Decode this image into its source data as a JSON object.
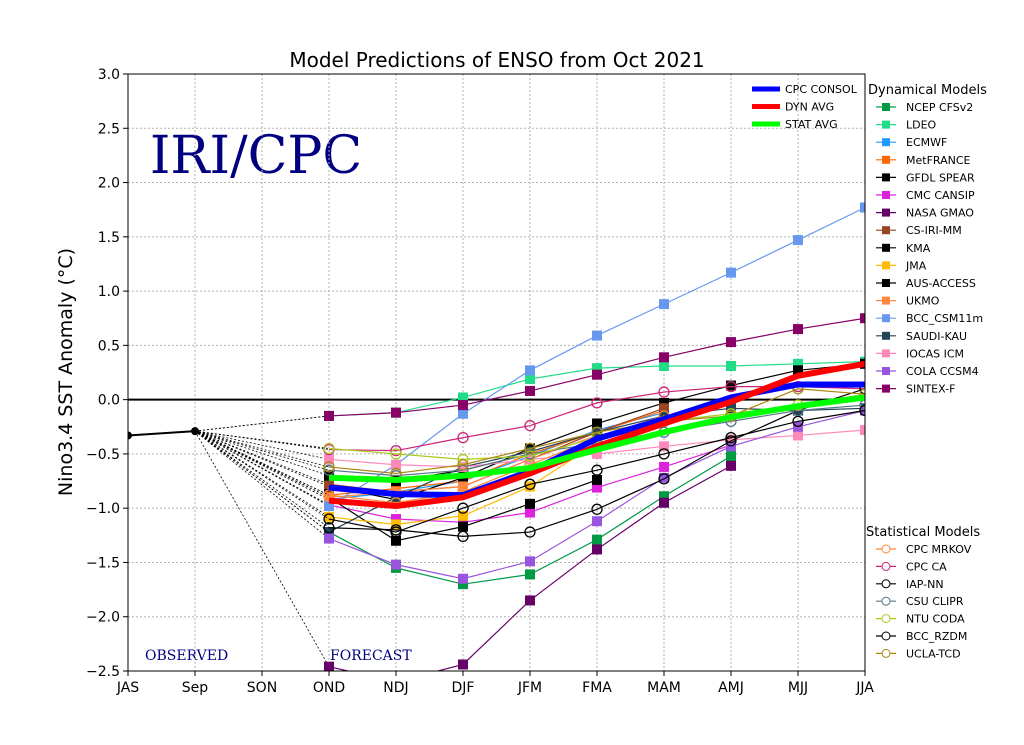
{
  "chart_data": {
    "type": "line",
    "title": "Model Predictions of ENSO from Oct 2021",
    "ylabel": "Nino3.4 SST Anomaly (°C)",
    "xlabel": "",
    "ylim": [
      -2.5,
      3.0
    ],
    "grid": true,
    "categories": [
      "JAS",
      "Sep",
      "SON",
      "OND",
      "NDJ",
      "DJF",
      "JFM",
      "FMA",
      "MAM",
      "AMJ",
      "MJJ",
      "JJA"
    ],
    "yticks": [
      "3.0",
      "2.5",
      "2.0",
      "1.5",
      "1.0",
      "0.5",
      "0.0",
      "−0.5",
      "−1.0",
      "−1.5",
      "−2.0",
      "−2.5"
    ],
    "watermark": "IRI/CPC",
    "annotations": {
      "observed": "OBSERVED",
      "forecast": "FORECAST"
    },
    "observed": {
      "categories": [
        "JAS",
        "Sep"
      ],
      "values": [
        -0.33,
        -0.29
      ]
    },
    "forecast_categories": [
      "OND",
      "NDJ",
      "DJF",
      "JFM",
      "FMA",
      "MAM",
      "AMJ",
      "MJJ",
      "JJA"
    ],
    "summary_series": [
      {
        "name": "CPC CONSOL",
        "color": "#0000ff",
        "values": [
          -0.81,
          -0.87,
          -0.88,
          -0.66,
          -0.36,
          -0.18,
          0.02,
          0.14,
          0.14
        ]
      },
      {
        "name": "DYN AVG",
        "color": "#ff0000",
        "values": [
          -0.93,
          -0.98,
          -0.9,
          -0.68,
          -0.43,
          -0.22,
          -0.02,
          0.22,
          0.33
        ]
      },
      {
        "name": "STAT AVG",
        "color": "#00ff00",
        "values": [
          -0.72,
          -0.74,
          -0.7,
          -0.63,
          -0.46,
          -0.3,
          -0.16,
          -0.06,
          0.02
        ]
      }
    ],
    "dynamical_title": "Dynamical Models",
    "dynamical_models": [
      {
        "name": "NCEP CFSv2",
        "color": "#009944",
        "values": [
          -1.22,
          -1.55,
          -1.7,
          -1.61,
          -1.29,
          -0.89,
          -0.52,
          null,
          null
        ]
      },
      {
        "name": "LDEO",
        "color": "#22dd88",
        "values": [
          -0.15,
          -0.12,
          0.02,
          0.19,
          0.29,
          0.31,
          0.31,
          0.33,
          0.35
        ]
      },
      {
        "name": "ECMWF",
        "color": "#2299ff",
        "values": [
          -0.92,
          -0.85,
          -0.75,
          -0.52,
          -0.28,
          -0.12,
          null,
          null,
          null
        ]
      },
      {
        "name": "MetFRANCE",
        "color": "#ff6600",
        "values": [
          -0.88,
          -0.82,
          -0.75,
          -0.5,
          -0.3,
          -0.1,
          null,
          null,
          null
        ]
      },
      {
        "name": "GFDL SPEAR",
        "color": "#000000",
        "values": [
          -0.8,
          -0.92,
          -0.72,
          -0.45,
          -0.22,
          -0.03,
          0.13,
          0.27,
          0.33
        ]
      },
      {
        "name": "CMC CANSIP",
        "color": "#dd22dd",
        "values": [
          -0.97,
          -1.1,
          -1.13,
          -1.04,
          -0.81,
          -0.62,
          -0.42,
          null,
          null
        ]
      },
      {
        "name": "NASA GMAO",
        "color": "#660066",
        "values": [
          -2.46,
          -2.6,
          -2.44,
          -1.85,
          -1.38,
          -0.95,
          -0.61,
          null,
          null
        ]
      },
      {
        "name": "CS-IRI-MM",
        "color": "#994422",
        "values": [
          -0.78,
          -0.85,
          -0.8,
          -0.55,
          -0.3,
          -0.08,
          null,
          null,
          null
        ]
      },
      {
        "name": "KMA",
        "color": "#000000",
        "values": [
          -0.9,
          -1.3,
          -1.17,
          -0.96,
          -0.74,
          null,
          null,
          null,
          null
        ]
      },
      {
        "name": "JMA",
        "color": "#ffbb00",
        "values": [
          -1.08,
          -1.15,
          -1.07,
          -0.8,
          -0.4,
          null,
          null,
          null,
          null
        ]
      },
      {
        "name": "AUS-ACCESS",
        "color": "#000000",
        "values": [
          -0.7,
          -0.75,
          -0.65,
          -0.5,
          null,
          null,
          null,
          null,
          null
        ]
      },
      {
        "name": "UKMO",
        "color": "#ff8844",
        "values": [
          -0.9,
          -0.85,
          -0.8,
          -0.55,
          -0.33,
          null,
          null,
          null,
          null
        ]
      },
      {
        "name": "BCC_CSM11m",
        "color": "#6699ee",
        "values": [
          -0.98,
          -0.6,
          -0.13,
          0.27,
          0.59,
          0.88,
          1.17,
          1.47,
          1.77
        ]
      },
      {
        "name": "SAUDI-KAU",
        "color": "#224455",
        "values": [
          -1.22,
          -0.9,
          -0.62,
          -0.48,
          -0.3,
          -0.15,
          -0.08,
          -0.1,
          -0.08
        ]
      },
      {
        "name": "IOCAS ICM",
        "color": "#ff88bb",
        "values": [
          -0.55,
          -0.6,
          -0.62,
          -0.55,
          -0.5,
          -0.43,
          -0.37,
          -0.33,
          -0.28
        ]
      },
      {
        "name": "COLA CCSM4",
        "color": "#9955dd",
        "values": [
          -1.28,
          -1.52,
          -1.65,
          -1.49,
          -1.12,
          -0.72,
          -0.43,
          -0.25,
          -0.1
        ]
      },
      {
        "name": "SINTEX-F",
        "color": "#880066",
        "values": [
          -0.15,
          -0.12,
          -0.05,
          0.08,
          0.23,
          0.39,
          0.53,
          0.65,
          0.75
        ]
      }
    ],
    "statistical_title": "Statistical Models",
    "statistical_models": [
      {
        "name": "CPC MRKOV",
        "color": "#ff8833",
        "values": [
          -0.88,
          -0.95,
          -0.85,
          -0.6,
          -0.35,
          -0.15,
          null,
          null,
          null
        ]
      },
      {
        "name": "CPC CA",
        "color": "#cc2277",
        "values": [
          -0.46,
          -0.47,
          -0.35,
          -0.24,
          -0.03,
          0.07,
          0.12,
          0.12,
          0.1
        ]
      },
      {
        "name": "IAP-NN",
        "color": "#000000",
        "values": [
          -1.18,
          -1.2,
          -1.26,
          -1.22,
          -1.01,
          -0.73,
          -0.38,
          -0.1,
          0.1
        ]
      },
      {
        "name": "CSU CLIPR",
        "color": "#557788",
        "values": [
          -0.65,
          -0.7,
          -0.65,
          -0.5,
          -0.4,
          -0.3,
          -0.2,
          -0.1,
          -0.05
        ]
      },
      {
        "name": "NTU CODA",
        "color": "#aacc22",
        "values": [
          -0.45,
          -0.5,
          -0.55,
          -0.52,
          -0.35,
          -0.2,
          -0.13,
          -0.05,
          0.05
        ]
      },
      {
        "name": "BCC_RZDM",
        "color": "#000000",
        "values": [
          -1.1,
          -1.22,
          -1.0,
          -0.78,
          -0.65,
          -0.5,
          -0.35,
          -0.2,
          -0.1
        ]
      },
      {
        "name": "UCLA-TCD",
        "color": "#aa8811",
        "values": [
          -0.62,
          -0.68,
          -0.6,
          -0.45,
          -0.3,
          -0.2,
          -0.15,
          0.1,
          0.05
        ]
      }
    ]
  }
}
